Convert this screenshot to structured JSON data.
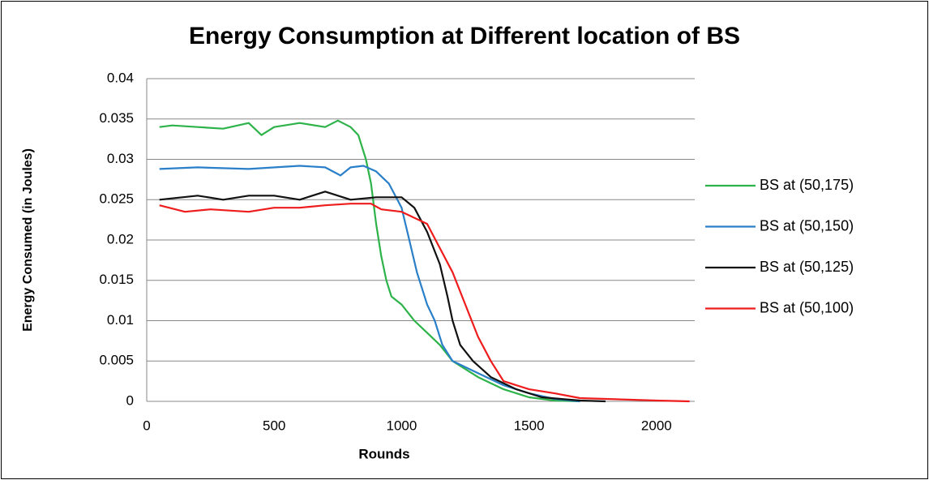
{
  "chart_data": {
    "type": "line",
    "title": "Energy Consumption at Different location of BS",
    "xlabel": "Rounds",
    "ylabel": "Energy Consumed (in Joules)",
    "xlim": [
      0,
      2150
    ],
    "xticks": [
      0,
      500,
      1000,
      1500,
      2000
    ],
    "ylim": [
      0,
      0.04
    ],
    "yticks": [
      0,
      0.005,
      0.01,
      0.015,
      0.02,
      0.025,
      0.03,
      0.035,
      0.04
    ],
    "grid": true,
    "legend": "right",
    "series": [
      {
        "name": "BS at (50,175)",
        "color": "#2db34a",
        "x": [
          50,
          100,
          200,
          300,
          400,
          450,
          500,
          600,
          700,
          750,
          800,
          830,
          860,
          880,
          900,
          920,
          940,
          960,
          1000,
          1050,
          1100,
          1150,
          1200,
          1250,
          1300,
          1400,
          1500,
          1600,
          1700
        ],
        "values": [
          0.034,
          0.0342,
          0.034,
          0.0338,
          0.0345,
          0.033,
          0.034,
          0.0345,
          0.034,
          0.0348,
          0.034,
          0.033,
          0.03,
          0.027,
          0.022,
          0.018,
          0.015,
          0.013,
          0.012,
          0.01,
          0.0085,
          0.007,
          0.005,
          0.004,
          0.003,
          0.0015,
          0.0005,
          0.0001,
          0
        ]
      },
      {
        "name": "BS at (50,150)",
        "color": "#2a7fc9",
        "x": [
          50,
          200,
          400,
          600,
          700,
          760,
          800,
          850,
          900,
          950,
          1000,
          1030,
          1060,
          1100,
          1130,
          1160,
          1200,
          1300,
          1400,
          1500,
          1600,
          1700
        ],
        "values": [
          0.0288,
          0.029,
          0.0288,
          0.0292,
          0.029,
          0.028,
          0.029,
          0.0292,
          0.0285,
          0.027,
          0.024,
          0.02,
          0.016,
          0.012,
          0.01,
          0.007,
          0.005,
          0.0035,
          0.002,
          0.001,
          0.0003,
          0
        ]
      },
      {
        "name": "BS at (50,125)",
        "color": "#111111",
        "x": [
          50,
          200,
          300,
          400,
          500,
          600,
          700,
          800,
          900,
          1000,
          1050,
          1100,
          1150,
          1180,
          1200,
          1230,
          1280,
          1350,
          1450,
          1550,
          1700,
          1800
        ],
        "values": [
          0.025,
          0.0255,
          0.025,
          0.0255,
          0.0255,
          0.025,
          0.026,
          0.025,
          0.0253,
          0.0253,
          0.024,
          0.021,
          0.017,
          0.013,
          0.01,
          0.007,
          0.005,
          0.003,
          0.0015,
          0.0005,
          0.0001,
          0
        ]
      },
      {
        "name": "BS at (50,100)",
        "color": "#ee1c1c",
        "x": [
          50,
          150,
          250,
          400,
          500,
          600,
          700,
          800,
          880,
          920,
          1000,
          1100,
          1150,
          1200,
          1250,
          1300,
          1350,
          1400,
          1500,
          1600,
          1700,
          1900,
          2000,
          2130
        ],
        "values": [
          0.0243,
          0.0235,
          0.0238,
          0.0235,
          0.024,
          0.024,
          0.0243,
          0.0245,
          0.0245,
          0.0238,
          0.0235,
          0.022,
          0.019,
          0.016,
          0.012,
          0.008,
          0.005,
          0.0025,
          0.0015,
          0.001,
          0.0004,
          0.0002,
          0.0001,
          0
        ]
      }
    ]
  }
}
